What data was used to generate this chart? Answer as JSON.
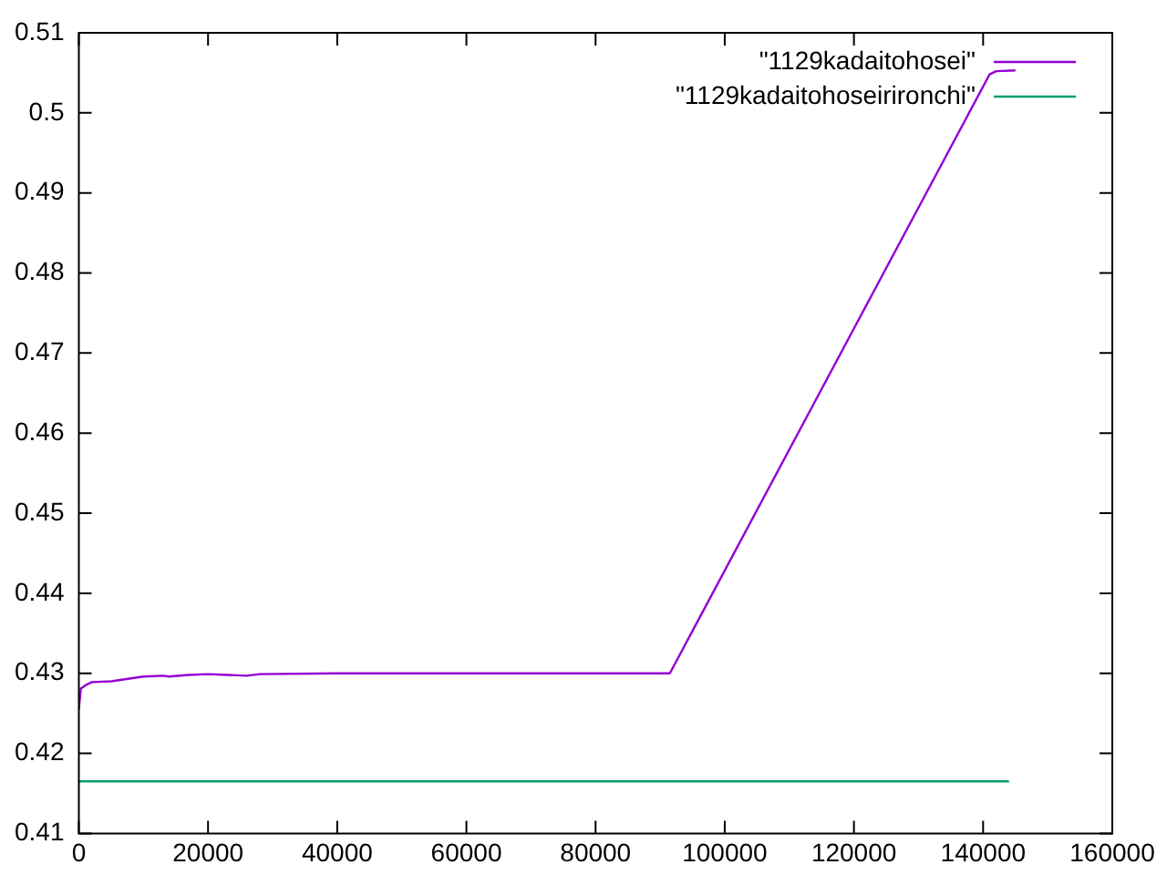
{
  "chart_data": {
    "type": "line",
    "xlim": [
      0,
      160000
    ],
    "xticks": [
      0,
      20000,
      40000,
      60000,
      80000,
      100000,
      120000,
      140000,
      160000
    ],
    "ylim": [
      0.41,
      0.51
    ],
    "yticks": [
      0.41,
      0.42,
      0.43,
      0.44,
      0.45,
      0.46,
      0.47,
      0.48,
      0.49,
      0.5,
      0.51
    ],
    "legend": "top right",
    "grid": false,
    "marker": "none",
    "line_style": "solid",
    "series": [
      {
        "name": "\"1129kadaitohosei\"",
        "color": "#9400d3",
        "x": [
          0,
          300,
          1000,
          2000,
          5000,
          10000,
          13000,
          14000,
          17000,
          20000,
          23000,
          26000,
          28000,
          40000,
          91500,
          141000,
          142000,
          145000
        ],
        "values": [
          0.4255,
          0.4281,
          0.4285,
          0.4289,
          0.429,
          0.4296,
          0.4297,
          0.4296,
          0.4298,
          0.4299,
          0.4298,
          0.4297,
          0.4299,
          0.43,
          0.43,
          0.5048,
          0.5052,
          0.5053
        ]
      },
      {
        "name": "\"1129kadaitohoseirironchi\"",
        "color": "#009e73",
        "x": [
          0,
          144000
        ],
        "values": [
          0.4165,
          0.4165
        ]
      }
    ]
  }
}
